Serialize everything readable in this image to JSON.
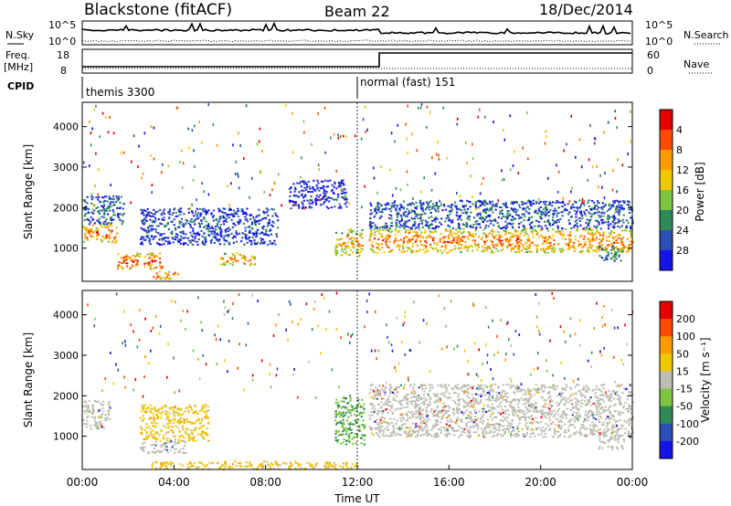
{
  "header": {
    "station": "Blackstone (fitACF)",
    "beam": "Beam 22",
    "date": "18/Dec/2014"
  },
  "noise_panel": {
    "left_label": "N.Sky",
    "right_label": "N.Search",
    "left_ticks": [
      "10^5",
      "10^0"
    ],
    "right_ticks": [
      "10^5",
      "10^0"
    ]
  },
  "freq_panel": {
    "left_label_1": "Freq.",
    "left_label_2": "[MHz]",
    "right_label": "Nave",
    "left_ticks": [
      "18",
      "8"
    ],
    "right_ticks": [
      "60",
      "0"
    ]
  },
  "cpid": {
    "label": "CPID",
    "modes": [
      {
        "name": "themis 3300",
        "start_hour": 0
      },
      {
        "name": "normal (fast) 151",
        "start_hour": 12
      }
    ]
  },
  "chart_data": [
    {
      "type": "heatmap",
      "panel": "power",
      "ylabel": "Slant Range [km]",
      "ylim": [
        180,
        4600
      ],
      "yticks": [
        "1000",
        "2000",
        "3000",
        "4000"
      ],
      "xlim": [
        0,
        24
      ],
      "colorbar_label": "Power [dB]",
      "colorbar_ticks": [
        "4",
        "8",
        "12",
        "16",
        "20",
        "24",
        "28"
      ],
      "colors": [
        "#1414e6",
        "#2a4fb4",
        "#2e8b57",
        "#7cc441",
        "#f0c800",
        "#ff9a00",
        "#ff4a00",
        "#e60000"
      ],
      "bands": [
        {
          "t": [
            0.0,
            1.5
          ],
          "r": [
            1150,
            1600
          ],
          "level": 0.75
        },
        {
          "t": [
            0.0,
            1.8
          ],
          "r": [
            1600,
            2300
          ],
          "level": 0.2
        },
        {
          "t": [
            1.5,
            3.5
          ],
          "r": [
            500,
            900
          ],
          "level": 0.8
        },
        {
          "t": [
            3.0,
            4.2
          ],
          "r": [
            250,
            450
          ],
          "level": 0.75
        },
        {
          "t": [
            2.5,
            8.5
          ],
          "r": [
            1100,
            2000
          ],
          "level": 0.15
        },
        {
          "t": [
            6.0,
            7.5
          ],
          "r": [
            600,
            900
          ],
          "level": 0.65
        },
        {
          "t": [
            9.0,
            11.5
          ],
          "r": [
            2000,
            2700
          ],
          "level": 0.1
        },
        {
          "t": [
            11.0,
            12.2
          ],
          "r": [
            800,
            1500
          ],
          "level": 0.6
        },
        {
          "t": [
            12.5,
            24.0
          ],
          "r": [
            900,
            1500
          ],
          "level": 0.7
        },
        {
          "t": [
            12.5,
            24.0
          ],
          "r": [
            1500,
            2200
          ],
          "level": 0.2
        },
        {
          "t": [
            22.5,
            23.6
          ],
          "r": [
            700,
            1100
          ],
          "level": 0.3
        }
      ]
    },
    {
      "type": "heatmap",
      "panel": "velocity",
      "ylabel": "Slant Range [km]",
      "ylim": [
        180,
        4600
      ],
      "yticks": [
        "1000",
        "2000",
        "3000",
        "4000"
      ],
      "xlim": [
        0,
        24
      ],
      "xlabel": "Time UT",
      "xticks": [
        "00:00",
        "04:00",
        "08:00",
        "12:00",
        "16:00",
        "20:00",
        "00:00"
      ],
      "colorbar_label": "Velocity [m s⁻¹]",
      "colorbar_ticks": [
        "200",
        "100",
        "50",
        "15",
        "-15",
        "-50",
        "-100",
        "-200"
      ],
      "colors": [
        "#1414e6",
        "#2a4fb4",
        "#2e8b57",
        "#7cc441",
        "#bdbdb3",
        "#f0c800",
        "#ff9a00",
        "#ff4a00",
        "#e60000"
      ],
      "bands": [
        {
          "t": [
            0.0,
            1.2
          ],
          "r": [
            1200,
            1900
          ],
          "level": "ground"
        },
        {
          "t": [
            2.5,
            5.5
          ],
          "r": [
            900,
            1800
          ],
          "level": "orange"
        },
        {
          "t": [
            2.5,
            4.5
          ],
          "r": [
            600,
            900
          ],
          "level": "ground"
        },
        {
          "t": [
            3.0,
            12.0
          ],
          "r": [
            200,
            400
          ],
          "level": "orange"
        },
        {
          "t": [
            11.0,
            12.3
          ],
          "r": [
            800,
            2000
          ],
          "level": "green"
        },
        {
          "t": [
            12.5,
            24.0
          ],
          "r": [
            1000,
            2300
          ],
          "level": "ground"
        },
        {
          "t": [
            22.5,
            23.6
          ],
          "r": [
            700,
            1100
          ],
          "level": "ground"
        }
      ]
    }
  ]
}
